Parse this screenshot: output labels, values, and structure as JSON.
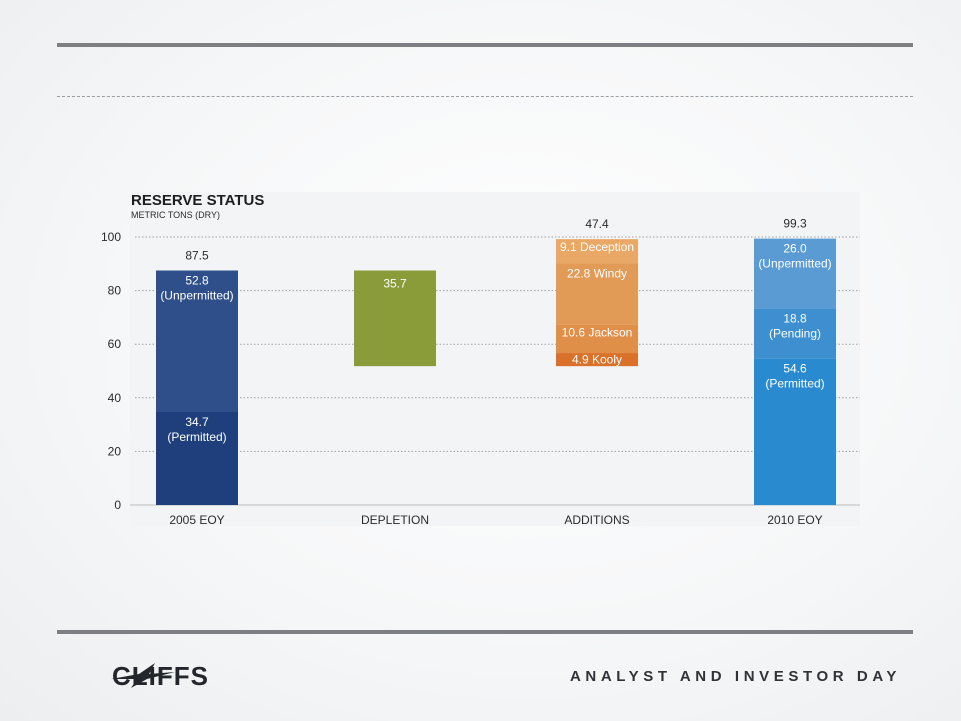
{
  "brand": {
    "name": "CLIFFS",
    "tagline": "ANALYST AND INVESTOR DAY"
  },
  "chart_data": {
    "type": "bar",
    "subtype": "waterfall-stacked",
    "title": "RESERVE STATUS",
    "subtitle": "METRIC TONS (DRY)",
    "ylim": [
      0,
      100
    ],
    "yticks": [
      0,
      20,
      40,
      60,
      80,
      100
    ],
    "grid": true,
    "categories": [
      "2005 EOY",
      "DEPLETION",
      "ADDITIONS",
      "2010 EOY"
    ],
    "bars": [
      {
        "category": "2005 EOY",
        "total_label": "87.5",
        "segments": [
          {
            "label": "34.7",
            "sublabel": "(Permitted)",
            "base": 0,
            "value": 34.7,
            "color": "#1f3f7c"
          },
          {
            "label": "52.8",
            "sublabel": "(Unpermitted)",
            "base": 34.7,
            "value": 52.8,
            "color": "#2f4f8a"
          }
        ]
      },
      {
        "category": "DEPLETION",
        "total_label": "",
        "segments": [
          {
            "label": "35.7",
            "sublabel": "",
            "base": 51.8,
            "value": 35.7,
            "color": "#8a9c3a"
          }
        ]
      },
      {
        "category": "ADDITIONS",
        "total_label": "47.4",
        "segments": [
          {
            "label": "4.9 Kooly",
            "sublabel": "",
            "base": 51.8,
            "value": 4.9,
            "color": "#d9712a"
          },
          {
            "label": "10.6 Jackson",
            "sublabel": "",
            "base": 56.7,
            "value": 10.6,
            "color": "#e08f49"
          },
          {
            "label": "22.8 Windy",
            "sublabel": "",
            "base": 67.3,
            "value": 22.8,
            "color": "#e29a57"
          },
          {
            "label": "9.1 Deception",
            "sublabel": "",
            "base": 90.1,
            "value": 9.1,
            "color": "#e9a865"
          }
        ]
      },
      {
        "category": "2010 EOY",
        "total_label": "99.3",
        "segments": [
          {
            "label": "54.6",
            "sublabel": "(Permitted)",
            "base": 0,
            "value": 54.6,
            "color": "#2a8ad0"
          },
          {
            "label": "18.8",
            "sublabel": "(Pending)",
            "base": 54.6,
            "value": 18.8,
            "color": "#3d8fcf"
          },
          {
            "label": "26.0",
            "sublabel": "(Unpermitted)",
            "base": 73.4,
            "value": 26.0,
            "color": "#5a9bd4"
          }
        ]
      }
    ]
  }
}
